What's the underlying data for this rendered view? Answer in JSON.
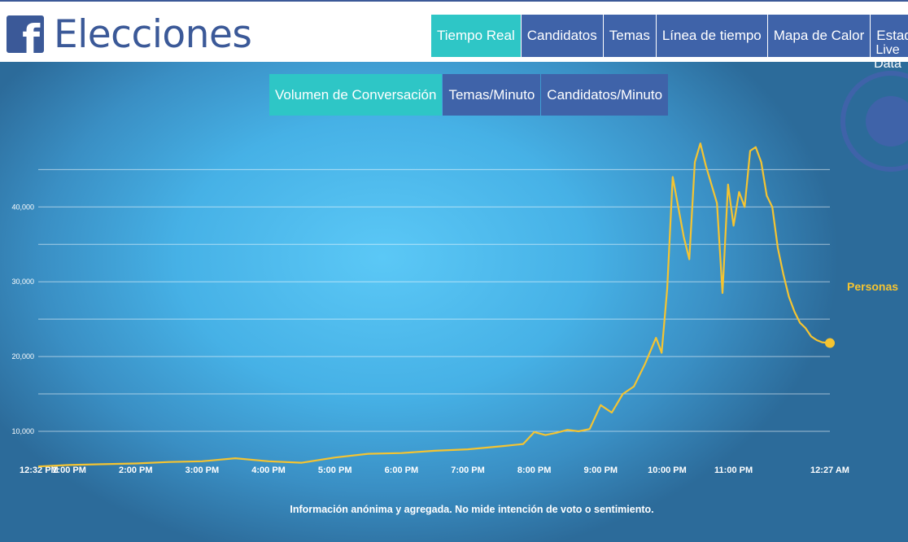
{
  "header": {
    "logo_letter": "f",
    "title": "Elecciones",
    "tabs": [
      {
        "label": "Tiempo Real",
        "active": true
      },
      {
        "label": "Candidatos",
        "active": false
      },
      {
        "label": "Temas",
        "active": false
      },
      {
        "label": "Línea de tiempo",
        "active": false
      },
      {
        "label": "Mapa de Calor",
        "active": false
      },
      {
        "label": "Estados",
        "active": false
      }
    ]
  },
  "subtabs": [
    {
      "label": "Volumen de Conversación",
      "active": true
    },
    {
      "label": "Temas/Minuto",
      "active": false
    },
    {
      "label": "Candidatos/Minuto",
      "active": false
    }
  ],
  "live_badge": {
    "line1": "Live",
    "line2": "Data"
  },
  "footnote": "Información anónima y agregada. No mide intención de voto o sentimiento.",
  "colors": {
    "accent": "#2ec6c6",
    "nav": "#3f63a9",
    "line": "#f5c431",
    "header_text": "#3b5998"
  },
  "chart_data": {
    "type": "line",
    "series": [
      {
        "name": "Personas",
        "x": [
          "12:32 PM",
          "1:00 PM",
          "1:30 PM",
          "2:00 PM",
          "2:30 PM",
          "3:00 PM",
          "3:30 PM",
          "4:00 PM",
          "4:30 PM",
          "5:00 PM",
          "5:30 PM",
          "6:00 PM",
          "6:30 PM",
          "7:00 PM",
          "7:30 PM",
          "7:50 PM",
          "8:00 PM",
          "8:10 PM",
          "8:20 PM",
          "8:30 PM",
          "8:40 PM",
          "8:50 PM",
          "9:00 PM",
          "9:10 PM",
          "9:20 PM",
          "9:30 PM",
          "9:40 PM",
          "9:50 PM",
          "9:55 PM",
          "10:00 PM",
          "10:05 PM",
          "10:10 PM",
          "10:15 PM",
          "10:20 PM",
          "10:25 PM",
          "10:30 PM",
          "10:35 PM",
          "10:40 PM",
          "10:45 PM",
          "10:50 PM",
          "10:55 PM",
          "11:00 PM",
          "11:05 PM",
          "11:10 PM",
          "11:15 PM",
          "11:20 PM",
          "11:25 PM",
          "11:30 PM",
          "11:35 PM",
          "11:40 PM",
          "11:45 PM",
          "11:50 PM",
          "11:55 PM",
          "12:00 AM",
          "12:05 AM",
          "12:10 AM",
          "12:15 AM",
          "12:20 AM",
          "12:27 AM"
        ],
        "values": [
          5300,
          5500,
          5600,
          5700,
          5900,
          6000,
          6400,
          6000,
          5800,
          6500,
          7000,
          7100,
          7400,
          7600,
          8000,
          8300,
          9900,
          9500,
          9800,
          10200,
          10000,
          10300,
          13500,
          12500,
          15000,
          16000,
          19000,
          22500,
          20500,
          29000,
          44000,
          40000,
          36000,
          33000,
          46000,
          48500,
          45500,
          43000,
          40500,
          28500,
          43000,
          37500,
          42000,
          40000,
          47500,
          48000,
          46000,
          41500,
          40000,
          34500,
          31000,
          28000,
          26000,
          24500,
          23800,
          22700,
          22200,
          21900,
          21800
        ]
      }
    ],
    "x_ticks": [
      "12:32 PM",
      "1:00 PM",
      "2:00 PM",
      "3:00 PM",
      "4:00 PM",
      "5:00 PM",
      "6:00 PM",
      "7:00 PM",
      "8:00 PM",
      "9:00 PM",
      "10:00 PM",
      "11:00 PM",
      "12:27 AM"
    ],
    "y_ticks": [
      "10,000",
      "20,000",
      "30,000",
      "40,000"
    ],
    "ylim": [
      5000,
      50000
    ],
    "grid": true,
    "legend": "right"
  }
}
